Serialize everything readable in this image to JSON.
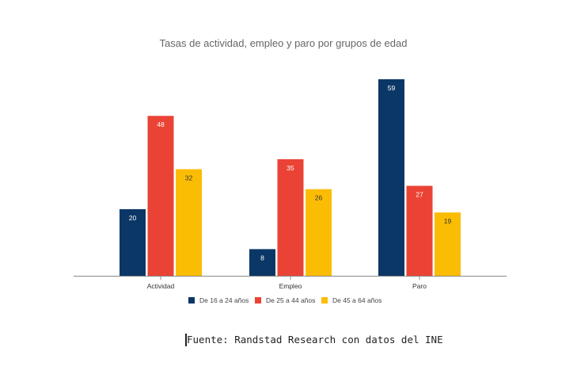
{
  "chart_data": {
    "type": "bar",
    "title": "Tasas de actividad, empleo y paro por grupos de edad",
    "categories": [
      "Actividad",
      "Empleo",
      "Paro"
    ],
    "series": [
      {
        "name": "De 16 a 24 años",
        "values": [
          20,
          8,
          59
        ],
        "color": "#0b3766",
        "label_color": "#ffffff"
      },
      {
        "name": "De 25 a 44 años",
        "values": [
          48,
          35,
          27
        ],
        "color": "#ea4335",
        "label_color": "#ffffff"
      },
      {
        "name": "De 45 a 64 años",
        "values": [
          32,
          26,
          19
        ],
        "color": "#fbbc04",
        "label_color": "#333333"
      }
    ],
    "ylim": [
      0,
      59
    ],
    "grid": false,
    "data_labels": true,
    "legend_position": "bottom"
  },
  "source": "Fuente: Randstad Research con datos del INE"
}
